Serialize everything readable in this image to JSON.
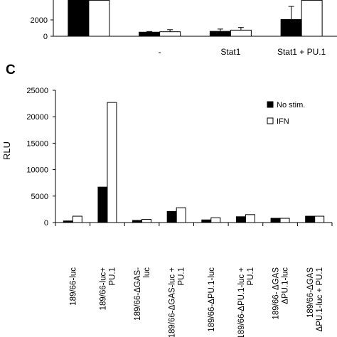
{
  "chart_data": [
    {
      "type": "bar",
      "panel": "top (partially visible)",
      "categories": [
        "",
        "-",
        "Stat1",
        "Stat1 + PU.1"
      ],
      "series": [
        {
          "name": "No stim.",
          "color": "#000000",
          "values": [
            4400,
            500,
            600,
            2050
          ],
          "errors": [
            0,
            80,
            280,
            1600
          ]
        },
        {
          "name": "IFN",
          "color": "#ffffff",
          "values": [
            4400,
            550,
            750,
            4400
          ],
          "errors": [
            0,
            250,
            320,
            0
          ]
        }
      ],
      "y_ticks": [
        "0",
        "2000"
      ],
      "ylim": [
        0,
        4400
      ]
    },
    {
      "type": "bar",
      "panel_label": "C",
      "ylabel": "RLU",
      "ylim": [
        0,
        25000
      ],
      "y_ticks": [
        "0",
        "5000",
        "10000",
        "15000",
        "20000",
        "25000"
      ],
      "legend": {
        "position": "top-right",
        "entries": [
          "No stim.",
          "IFN"
        ]
      },
      "categories": [
        [
          "189/66-luc"
        ],
        [
          "189/66-luc+",
          "PU.1"
        ],
        [
          "189/66-ΔGAS-",
          "luc"
        ],
        [
          "189/66-ΔGAS-luc +",
          "PU.1"
        ],
        [
          "189/66-ΔPU.1-luc"
        ],
        [
          "189/66-ΔPU.1-luc +",
          "PU.1"
        ],
        [
          "189/66- ΔGAS",
          "ΔPU.1-luc"
        ],
        [
          "189/66-ΔGAS",
          "ΔPU.1-luc + PU.1"
        ]
      ],
      "series": [
        {
          "name": "No stim.",
          "color": "#000000",
          "values": [
            300,
            6700,
            400,
            2100,
            500,
            1100,
            800,
            1200
          ]
        },
        {
          "name": "IFN",
          "color": "#ffffff",
          "values": [
            1200,
            22700,
            600,
            2800,
            900,
            1500,
            800,
            1200
          ]
        }
      ]
    }
  ]
}
